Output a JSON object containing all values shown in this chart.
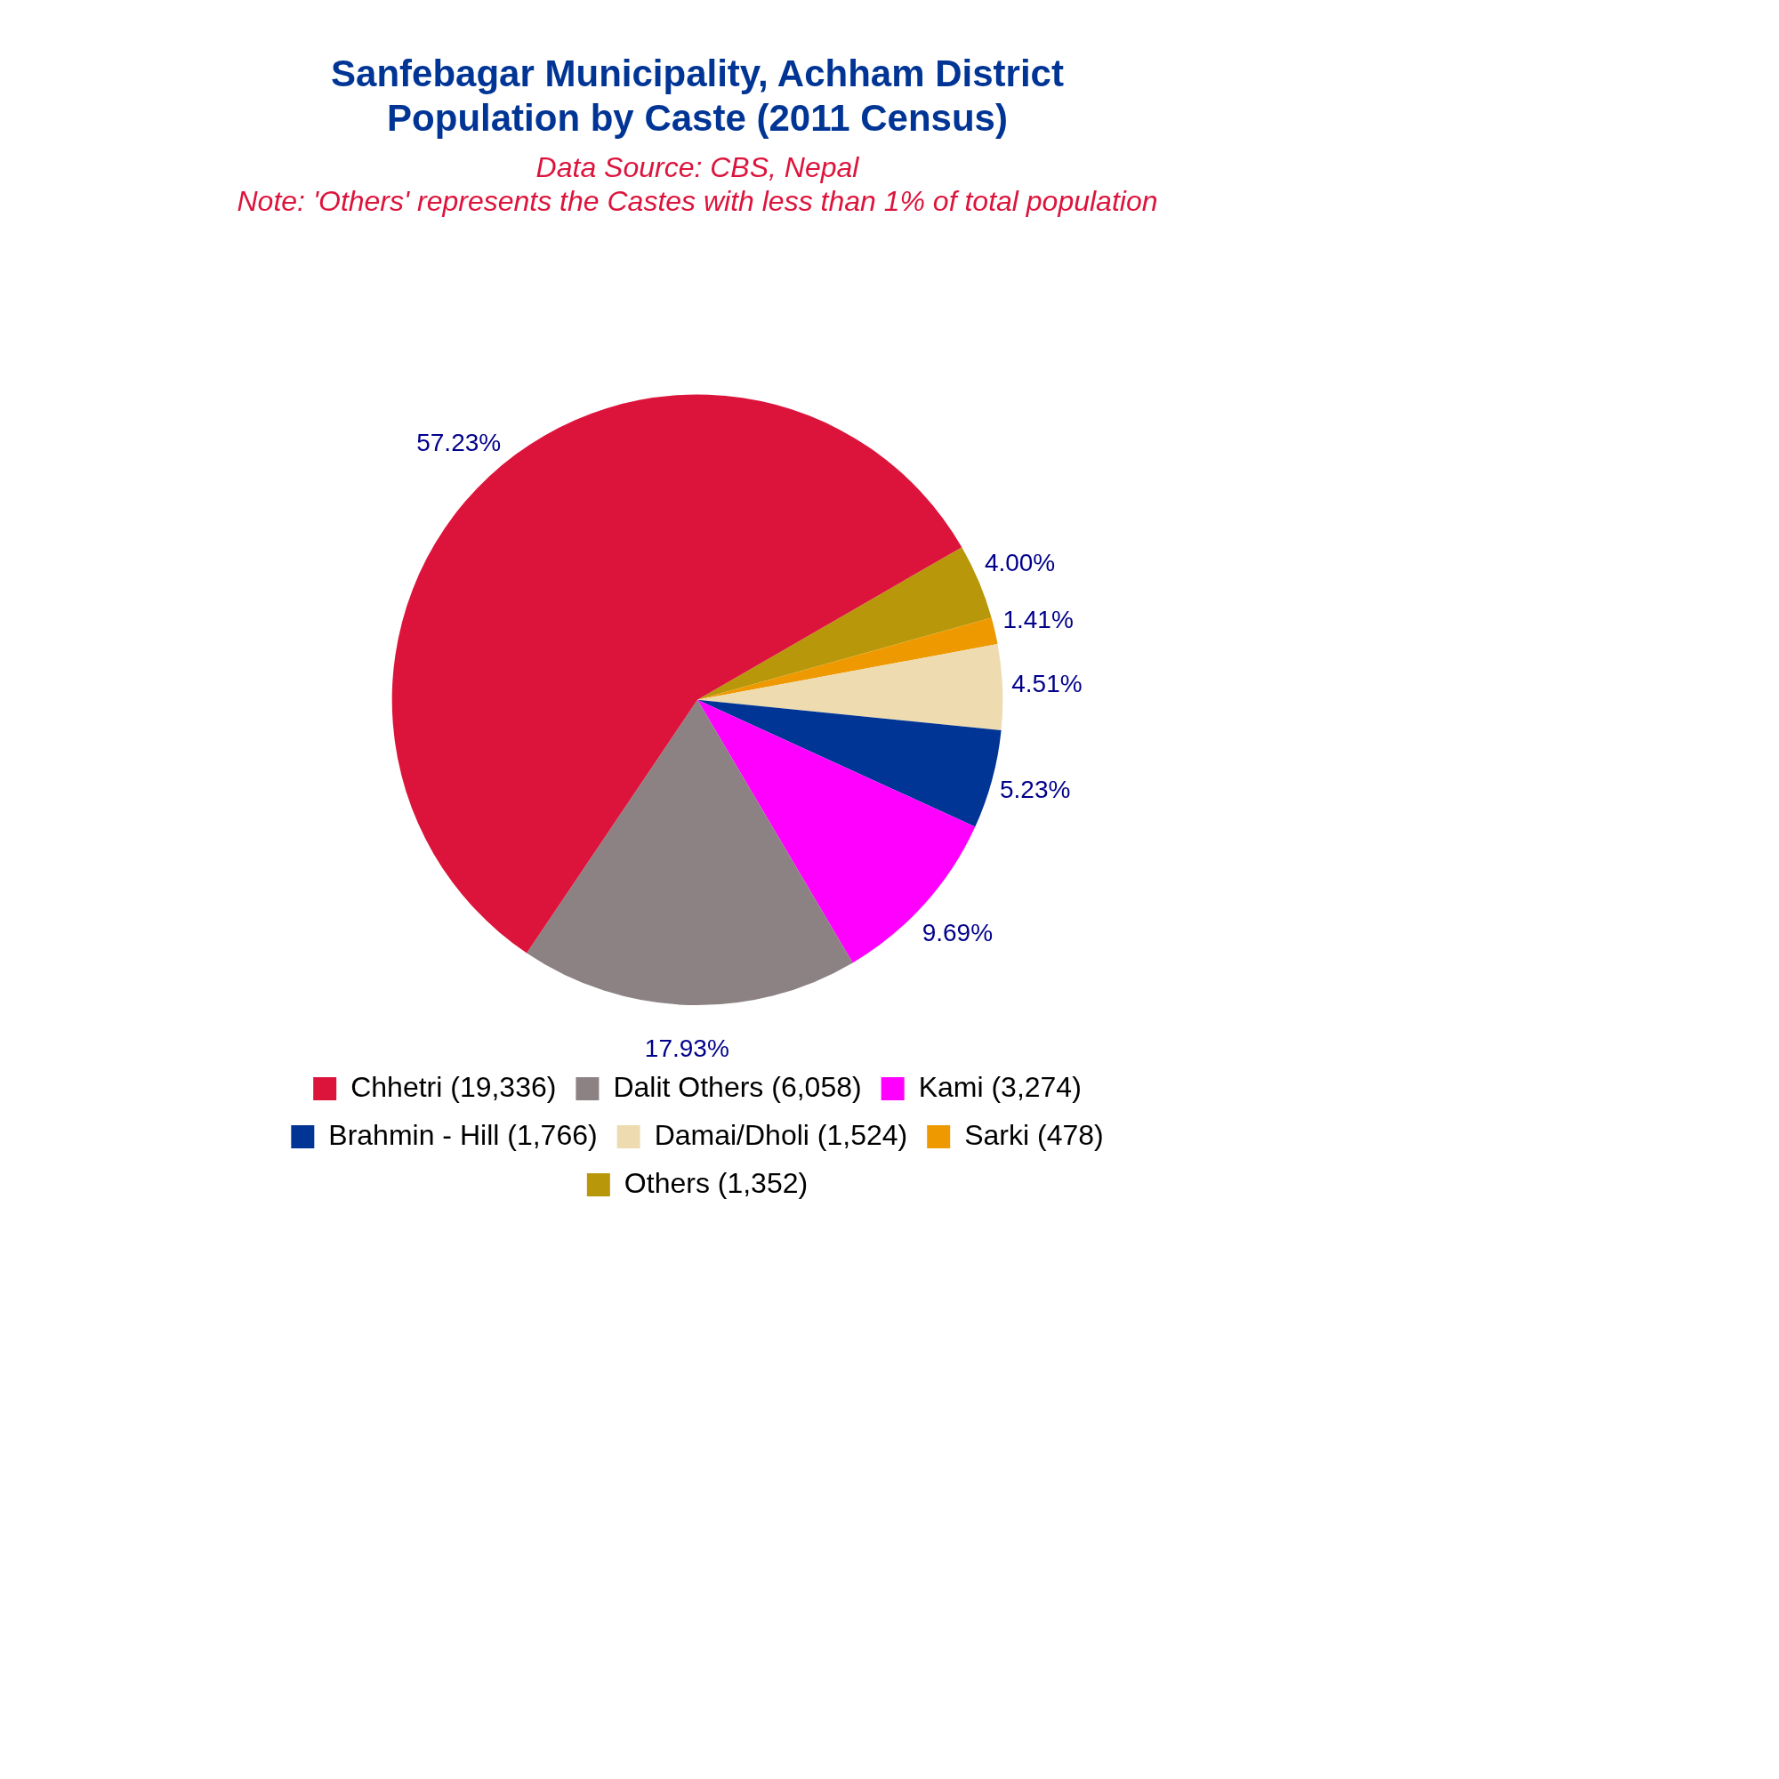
{
  "chart_data": {
    "type": "pie",
    "title": "Sanfebagar Municipality, Achham District\nPopulation by Caste (2011 Census)",
    "annotations": [
      "Data Source: CBS, Nepal",
      "Note: 'Others' represents the Castes with less than 1% of total population"
    ],
    "categories": [
      "Chhetri (19,336)",
      "Dalit Others (6,058)",
      "Kami (3,274)",
      "Brahmin - Hill (1,766)",
      "Damai/Dholi (1,524)",
      "Sarki (478)",
      "Others (1,352)"
    ],
    "values": [
      57.23,
      17.93,
      9.69,
      5.23,
      4.51,
      1.41,
      4.0
    ],
    "value_labels": [
      "57.23%",
      "17.93%",
      "9.69%",
      "5.23%",
      "4.51%",
      "1.41%",
      "4.00%"
    ],
    "colors": [
      "#dc143c",
      "#8c8284",
      "#ff00ff",
      "#003595",
      "#eedbb0",
      "#ee9900",
      "#b8980a"
    ],
    "legend": "bottom"
  }
}
